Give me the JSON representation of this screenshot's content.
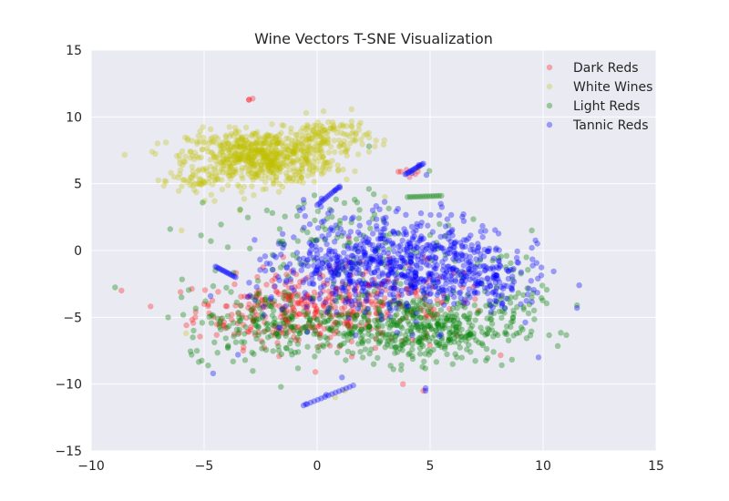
{
  "chart_data": {
    "type": "scatter",
    "title": "Wine Vectors T-SNE Visualization",
    "xlabel": "",
    "ylabel": "",
    "xlim": [
      -10,
      15
    ],
    "ylim": [
      -15,
      15
    ],
    "xticks": [
      "−10",
      "−5",
      "0",
      "5",
      "10",
      "15"
    ],
    "yticks": [
      "15",
      "10",
      "5",
      "0",
      "−5",
      "−10",
      "−15"
    ],
    "xtick_values": [
      -10,
      -5,
      0,
      5,
      10,
      15
    ],
    "ytick_values": [
      15,
      10,
      5,
      0,
      -5,
      -10,
      -15
    ],
    "grid": true,
    "background": "#eaeaf2",
    "legend_position": "top-right",
    "series": [
      {
        "name": "Dark Reds",
        "color": "#ff0000",
        "opacity": 0.3,
        "clusters": [
          {
            "center": [
              -1.0,
              -4.5
            ],
            "spread": [
              2.2,
              1.3
            ],
            "count": 260
          },
          {
            "center": [
              2.5,
              -4.0
            ],
            "spread": [
              2.5,
              1.5
            ],
            "count": 160
          },
          {
            "center": [
              4.0,
              6.0
            ],
            "spread": [
              0.4,
              0.3
            ],
            "count": 6
          },
          {
            "center": [
              -3.0,
              11.3
            ],
            "spread": [
              0.1,
              0.05
            ],
            "count": 3
          }
        ],
        "points": [
          [
            -5.0,
            -4.0
          ],
          [
            4.7,
            -10.5
          ],
          [
            -1.5,
            -0.5
          ],
          [
            3.8,
            -10.0
          ]
        ]
      },
      {
        "name": "White Wines",
        "color": "#bfbf00",
        "opacity": 0.3,
        "clusters": [
          {
            "center": [
              -2.5,
              7.0
            ],
            "spread": [
              1.6,
              1.0
            ],
            "count": 700
          },
          {
            "center": [
              0.5,
              8.5
            ],
            "spread": [
              0.9,
              0.8
            ],
            "count": 120
          },
          {
            "center": [
              -5.2,
              5.2
            ],
            "spread": [
              0.6,
              0.6
            ],
            "count": 40
          }
        ],
        "points": [
          [
            -5.8,
            -6.2
          ],
          [
            1.2,
            -10.5
          ],
          [
            0.8,
            -11.0
          ],
          [
            -6.0,
            1.5
          ],
          [
            4.5,
            6.2
          ],
          [
            3.0,
            4.0
          ]
        ]
      },
      {
        "name": "Light Reds",
        "color": "#008000",
        "opacity": 0.35,
        "clusters": [
          {
            "center": [
              4.5,
              -5.8
            ],
            "spread": [
              2.2,
              1.3
            ],
            "count": 450
          },
          {
            "center": [
              -1.5,
              -5.5
            ],
            "spread": [
              2.2,
              1.3
            ],
            "count": 220
          },
          {
            "center": [
              1.0,
              0.5
            ],
            "spread": [
              2.5,
              2.0
            ],
            "count": 120
          },
          {
            "center": [
              8.5,
              -3.0
            ],
            "spread": [
              0.8,
              1.5
            ],
            "count": 40
          }
        ],
        "points": [
          [
            -6.0,
            -3.5
          ],
          [
            -4.7,
            0.7
          ],
          [
            -4.5,
            -1.5
          ],
          [
            -5.5,
            -6.5
          ],
          [
            -1.6,
            -10.2
          ],
          [
            9.5,
            1.5
          ],
          [
            11.5,
            -4.1
          ],
          [
            -6.5,
            1.6
          ],
          [
            2.3,
            7.8
          ],
          [
            6.0,
            -8.5
          ]
        ]
      },
      {
        "name": "Tannic Reds",
        "color": "#0000ff",
        "opacity": 0.35,
        "clusters": [
          {
            "center": [
              4.0,
              -0.8
            ],
            "spread": [
              2.3,
              1.8
            ],
            "count": 600
          },
          {
            "center": [
              1.0,
              -2.0
            ],
            "spread": [
              2.0,
              1.6
            ],
            "count": 180
          },
          {
            "center": [
              7.5,
              -2.5
            ],
            "spread": [
              1.0,
              1.0
            ],
            "count": 90
          }
        ],
        "points": [
          [
            -4.6,
            -9.2
          ],
          [
            11.5,
            -4.3
          ],
          [
            9.8,
            -8.0
          ],
          [
            4.8,
            -10.5
          ],
          [
            4.8,
            -10.3
          ],
          [
            1.0,
            4.7
          ],
          [
            0.8,
            4.5
          ],
          [
            4.5,
            6.4
          ],
          [
            4.2,
            5.8
          ],
          [
            -3.5,
            -7.8
          ],
          [
            -0.6,
            3.8
          ],
          [
            0.2,
            3.9
          ],
          [
            1.1,
            -9.5
          ],
          [
            0.4,
            -10.8
          ],
          [
            -0.5,
            -11.5
          ],
          [
            9.5,
            0.2
          ]
        ]
      }
    ],
    "elongated_trails": [
      {
        "series": "Tannic Reds",
        "from": [
          -0.6,
          -11.6
        ],
        "to": [
          1.6,
          -10.1
        ]
      },
      {
        "series": "Tannic Reds",
        "from": [
          0.0,
          3.4
        ],
        "to": [
          1.0,
          4.8
        ]
      },
      {
        "series": "Tannic Reds",
        "from": [
          3.9,
          5.7
        ],
        "to": [
          4.7,
          6.5
        ]
      },
      {
        "series": "Light Reds",
        "from": [
          4.0,
          4.0
        ],
        "to": [
          5.5,
          4.1
        ]
      },
      {
        "series": "Tannic Reds",
        "from": [
          -4.5,
          -1.2
        ],
        "to": [
          -3.6,
          -2.0
        ]
      }
    ]
  }
}
